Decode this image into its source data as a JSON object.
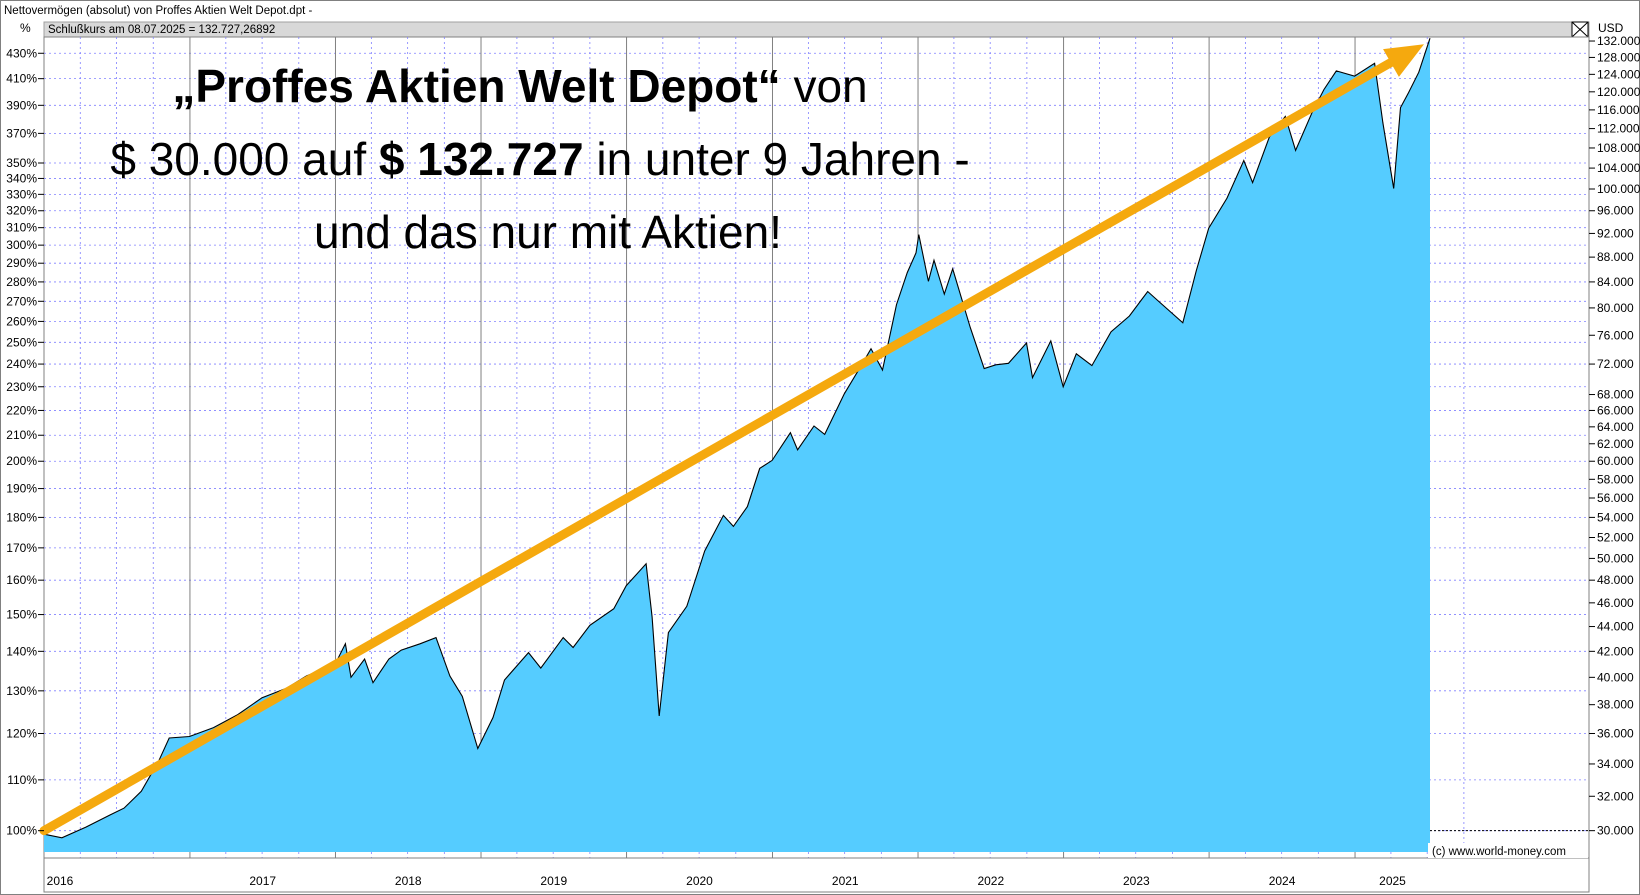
{
  "header": {
    "title": "Nettovermögen (absolut) von Proffes Aktien Welt Depot.dpt -",
    "closing_label": "Schlußkurs am 08.07.2025 = 132.727,26892",
    "left_unit": "%",
    "right_unit": "USD",
    "copyright": "(c) www.world-money.com"
  },
  "headline": {
    "line1_bold": "„Proffes Aktien Welt Depot“",
    "line1_rest": " von",
    "line2_pre": "$ 30.000 auf ",
    "line2_bold": "$ 132.727",
    "line2_rest": " in unter 9 Jahren -",
    "line3": "und das nur mit Aktien!"
  },
  "chart_data": {
    "type": "area",
    "title": "Nettovermögen (absolut) von Proffes Aktien Welt Depot.dpt -",
    "y_scale": "log",
    "ylim_usd": [
      28500,
      133000
    ],
    "xlim": [
      "2016-01-01",
      "2025-07-08"
    ],
    "fill_color": "#55CCFF",
    "line_color": "#000000",
    "trend_arrow_color": "#F5A90E",
    "grid": true,
    "x_labels": [
      "2016",
      "2017",
      "2018",
      "2019",
      "2020",
      "2021",
      "2022",
      "2023",
      "2024",
      "2025"
    ],
    "y_left_ticks": [
      "100%",
      "110%",
      "120%",
      "130%",
      "140%",
      "150%",
      "160%",
      "170%",
      "180%",
      "190%",
      "200%",
      "210%",
      "220%",
      "230%",
      "240%",
      "250%",
      "260%",
      "270%",
      "280%",
      "290%",
      "300%",
      "310%",
      "320%",
      "330%",
      "340%",
      "350%",
      "370%",
      "390%",
      "410%",
      "430%"
    ],
    "y_left_values": [
      30000,
      33000,
      36000,
      39000,
      42000,
      45000,
      48000,
      51000,
      54000,
      57000,
      60000,
      63000,
      66000,
      69000,
      72000,
      75000,
      78000,
      81000,
      84000,
      87000,
      90000,
      93000,
      96000,
      99000,
      102000,
      105000,
      111000,
      117000,
      123000,
      129000
    ],
    "y_right_ticks": [
      "30.000",
      "32.000",
      "34.000",
      "36.000",
      "38.000",
      "40.000",
      "42.000",
      "44.000",
      "46.000",
      "48.000",
      "50.000",
      "52.000",
      "54.000",
      "56.000",
      "58.000",
      "60.000",
      "62.000",
      "64.000",
      "66.000",
      "68.000",
      "72.000",
      "76.000",
      "80.000",
      "84.000",
      "88.000",
      "92.000",
      "96.000",
      "100.000",
      "104.000",
      "108.000",
      "112.000",
      "116.000",
      "120.000",
      "124.000",
      "128.000",
      "132.000"
    ],
    "y_right_values": [
      30000,
      32000,
      34000,
      36000,
      38000,
      40000,
      42000,
      44000,
      46000,
      48000,
      50000,
      52000,
      54000,
      56000,
      58000,
      60000,
      62000,
      64000,
      66000,
      68000,
      72000,
      76000,
      80000,
      84000,
      88000,
      92000,
      96000,
      100000,
      104000,
      108000,
      112000,
      116000,
      120000,
      124000,
      128000,
      132000
    ],
    "series": [
      {
        "x": [
          "2016-01-01",
          "2016-02-15",
          "2016-04-15",
          "2016-06-15",
          "2016-07-20",
          "2016-09-01",
          "2016-10-15",
          "2016-11-10",
          "2016-12-31",
          "2017-03-01",
          "2017-05-01",
          "2017-07-01",
          "2017-09-01",
          "2017-10-20",
          "2017-12-31",
          "2018-01-26",
          "2018-02-09",
          "2018-03-15",
          "2018-04-05",
          "2018-05-15",
          "2018-06-15",
          "2018-08-01",
          "2018-09-10",
          "2018-10-15",
          "2018-11-15",
          "2018-12-24",
          "2019-01-31",
          "2019-03-01",
          "2019-04-30",
          "2019-05-31",
          "2019-07-26",
          "2019-08-20",
          "2019-10-01",
          "2019-11-30",
          "2019-12-31",
          "2020-02-19",
          "2020-03-05",
          "2020-03-23",
          "2020-04-15",
          "2020-05-31",
          "2020-07-15",
          "2020-08-31",
          "2020-09-25",
          "2020-10-30",
          "2020-11-30",
          "2020-12-31",
          "2021-02-15",
          "2021-03-05",
          "2021-04-15",
          "2021-05-12",
          "2021-06-30",
          "2021-08-15",
          "2021-09-05",
          "2021-10-04",
          "2021-11-08",
          "2021-12-05",
          "2021-12-27",
          "2022-01-03",
          "2022-01-27",
          "2022-02-10",
          "2022-03-08",
          "2022-03-29",
          "2022-05-12",
          "2022-06-16",
          "2022-07-15",
          "2022-08-16",
          "2022-09-30",
          "2022-10-15",
          "2022-11-30",
          "2022-12-31",
          "2023-02-02",
          "2023-03-13",
          "2023-04-30",
          "2023-06-15",
          "2023-07-31",
          "2023-08-31",
          "2023-10-27",
          "2023-11-30",
          "2023-12-31",
          "2024-02-15",
          "2024-03-28",
          "2024-04-19",
          "2024-05-31",
          "2024-07-10",
          "2024-08-05",
          "2024-09-15",
          "2024-10-15",
          "2024-11-15",
          "2024-12-31",
          "2025-02-19",
          "2025-03-12",
          "2025-04-08",
          "2025-04-25",
          "2025-05-15",
          "2025-06-10",
          "2025-07-08"
        ],
        "values": [
          29800,
          29600,
          30200,
          30900,
          31300,
          32300,
          34200,
          35700,
          35800,
          36400,
          37300,
          38500,
          39200,
          40100,
          41000,
          42600,
          40000,
          41400,
          39600,
          41400,
          42100,
          42600,
          43100,
          40100,
          38600,
          35000,
          37100,
          39800,
          41900,
          40700,
          43100,
          42300,
          44100,
          45500,
          47500,
          49500,
          44800,
          37200,
          43500,
          45700,
          50700,
          54200,
          53100,
          55100,
          59200,
          60100,
          63300,
          61300,
          64100,
          63100,
          68100,
          72100,
          74100,
          71200,
          80500,
          85500,
          88700,
          91800,
          84100,
          87500,
          82100,
          86100,
          77100,
          71400,
          71900,
          72100,
          74900,
          70200,
          75200,
          69000,
          73400,
          71800,
          76500,
          78800,
          82500,
          80800,
          77800,
          85800,
          92900,
          98300,
          105500,
          101200,
          110200,
          114600,
          107500,
          115400,
          120500,
          124800,
          123600,
          126600,
          113200,
          100100,
          116500,
          119800,
          124500,
          132700
        ]
      }
    ],
    "trend_arrow": {
      "from_usd": 30000,
      "to_usd": 132700,
      "from_date": "2016-01-01",
      "to_date": "2025-07-08"
    }
  }
}
